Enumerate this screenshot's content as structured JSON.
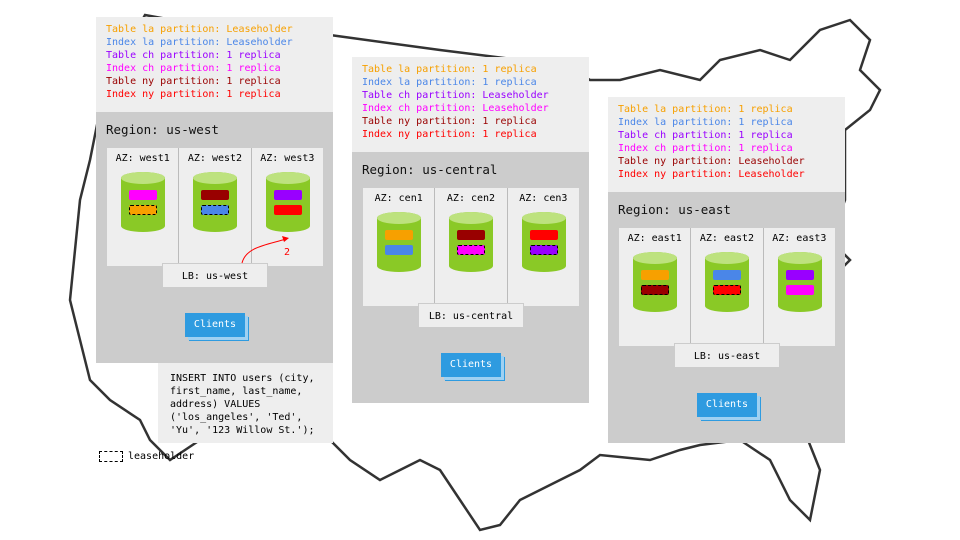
{
  "colors": {
    "la_table": "#f7a000",
    "la_index": "#4a86e8",
    "ch_table": "#9900ff",
    "ch_index": "#ff00ff",
    "ny_table": "#990000",
    "ny_index": "#ff0000",
    "cylinder": "#8ac926",
    "clients": "#2e9be0"
  },
  "regions": [
    {
      "id": "west",
      "title": "Region: us-west",
      "legend": [
        {
          "text": "Table la partition: Leaseholder",
          "color": "la_table"
        },
        {
          "text": "Index la partition: Leaseholder",
          "color": "la_index"
        },
        {
          "text": "Table ch partition: 1 replica",
          "color": "ch_table"
        },
        {
          "text": "Index ch partition: 1 replica",
          "color": "ch_index"
        },
        {
          "text": "Table ny partition: 1 replica",
          "color": "ny_table"
        },
        {
          "text": "Index ny partition: 1 replica",
          "color": "ny_index"
        }
      ],
      "azs": [
        {
          "name": "AZ: west1",
          "parts": [
            {
              "color": "ch_index",
              "leaseholder": false
            },
            {
              "color": "la_table",
              "leaseholder": true
            }
          ]
        },
        {
          "name": "AZ: west2",
          "parts": [
            {
              "color": "ny_table",
              "leaseholder": false
            },
            {
              "color": "la_index",
              "leaseholder": true
            }
          ]
        },
        {
          "name": "AZ: west3",
          "parts": [
            {
              "color": "ch_table",
              "leaseholder": false
            },
            {
              "color": "ny_index",
              "leaseholder": false
            }
          ]
        }
      ],
      "lb": "LB: us-west",
      "clients": "Clients",
      "arrow_label": "2"
    },
    {
      "id": "central",
      "title": "Region: us-central",
      "legend": [
        {
          "text": "Table la partition: 1 replica",
          "color": "la_table"
        },
        {
          "text": "Index la partition: 1 replica",
          "color": "la_index"
        },
        {
          "text": "Table ch partition: Leaseholder",
          "color": "ch_table"
        },
        {
          "text": "Index ch partition: Leaseholder",
          "color": "ch_index"
        },
        {
          "text": "Table ny partition: 1 replica",
          "color": "ny_table"
        },
        {
          "text": "Index ny partition: 1 replica",
          "color": "ny_index"
        }
      ],
      "azs": [
        {
          "name": "AZ: cen1",
          "parts": [
            {
              "color": "la_table",
              "leaseholder": false
            },
            {
              "color": "la_index",
              "leaseholder": false
            }
          ]
        },
        {
          "name": "AZ: cen2",
          "parts": [
            {
              "color": "ny_table",
              "leaseholder": false
            },
            {
              "color": "ch_index",
              "leaseholder": true
            }
          ]
        },
        {
          "name": "AZ: cen3",
          "parts": [
            {
              "color": "ny_index",
              "leaseholder": false
            },
            {
              "color": "ch_table",
              "leaseholder": true
            }
          ]
        }
      ],
      "lb": "LB: us-central",
      "clients": "Clients"
    },
    {
      "id": "east",
      "title": "Region: us-east",
      "legend": [
        {
          "text": "Table la partition: 1 replica",
          "color": "la_table"
        },
        {
          "text": "Index la partition: 1 replica",
          "color": "la_index"
        },
        {
          "text": "Table ch partition: 1 replica",
          "color": "ch_table"
        },
        {
          "text": "Index ch partition: 1 replica",
          "color": "ch_index"
        },
        {
          "text": "Table ny partition: Leaseholder",
          "color": "ny_table"
        },
        {
          "text": "Index ny partition: Leaseholder",
          "color": "ny_index"
        }
      ],
      "azs": [
        {
          "name": "AZ: east1",
          "parts": [
            {
              "color": "la_table",
              "leaseholder": false
            },
            {
              "color": "ny_table",
              "leaseholder": true
            }
          ]
        },
        {
          "name": "AZ: east2",
          "parts": [
            {
              "color": "la_index",
              "leaseholder": false
            },
            {
              "color": "ny_index",
              "leaseholder": true
            }
          ]
        },
        {
          "name": "AZ: east3",
          "parts": [
            {
              "color": "ch_table",
              "leaseholder": false
            },
            {
              "color": "ch_index",
              "leaseholder": false
            }
          ]
        }
      ],
      "lb": "LB: us-east",
      "clients": "Clients"
    }
  ],
  "insert_statement": "INSERT INTO users (city,\nfirst_name, last_name,\naddress) VALUES\n('los_angeles', 'Ted',\n'Yu', '123 Willow St.');",
  "leaseholder_key": "leaseholder"
}
